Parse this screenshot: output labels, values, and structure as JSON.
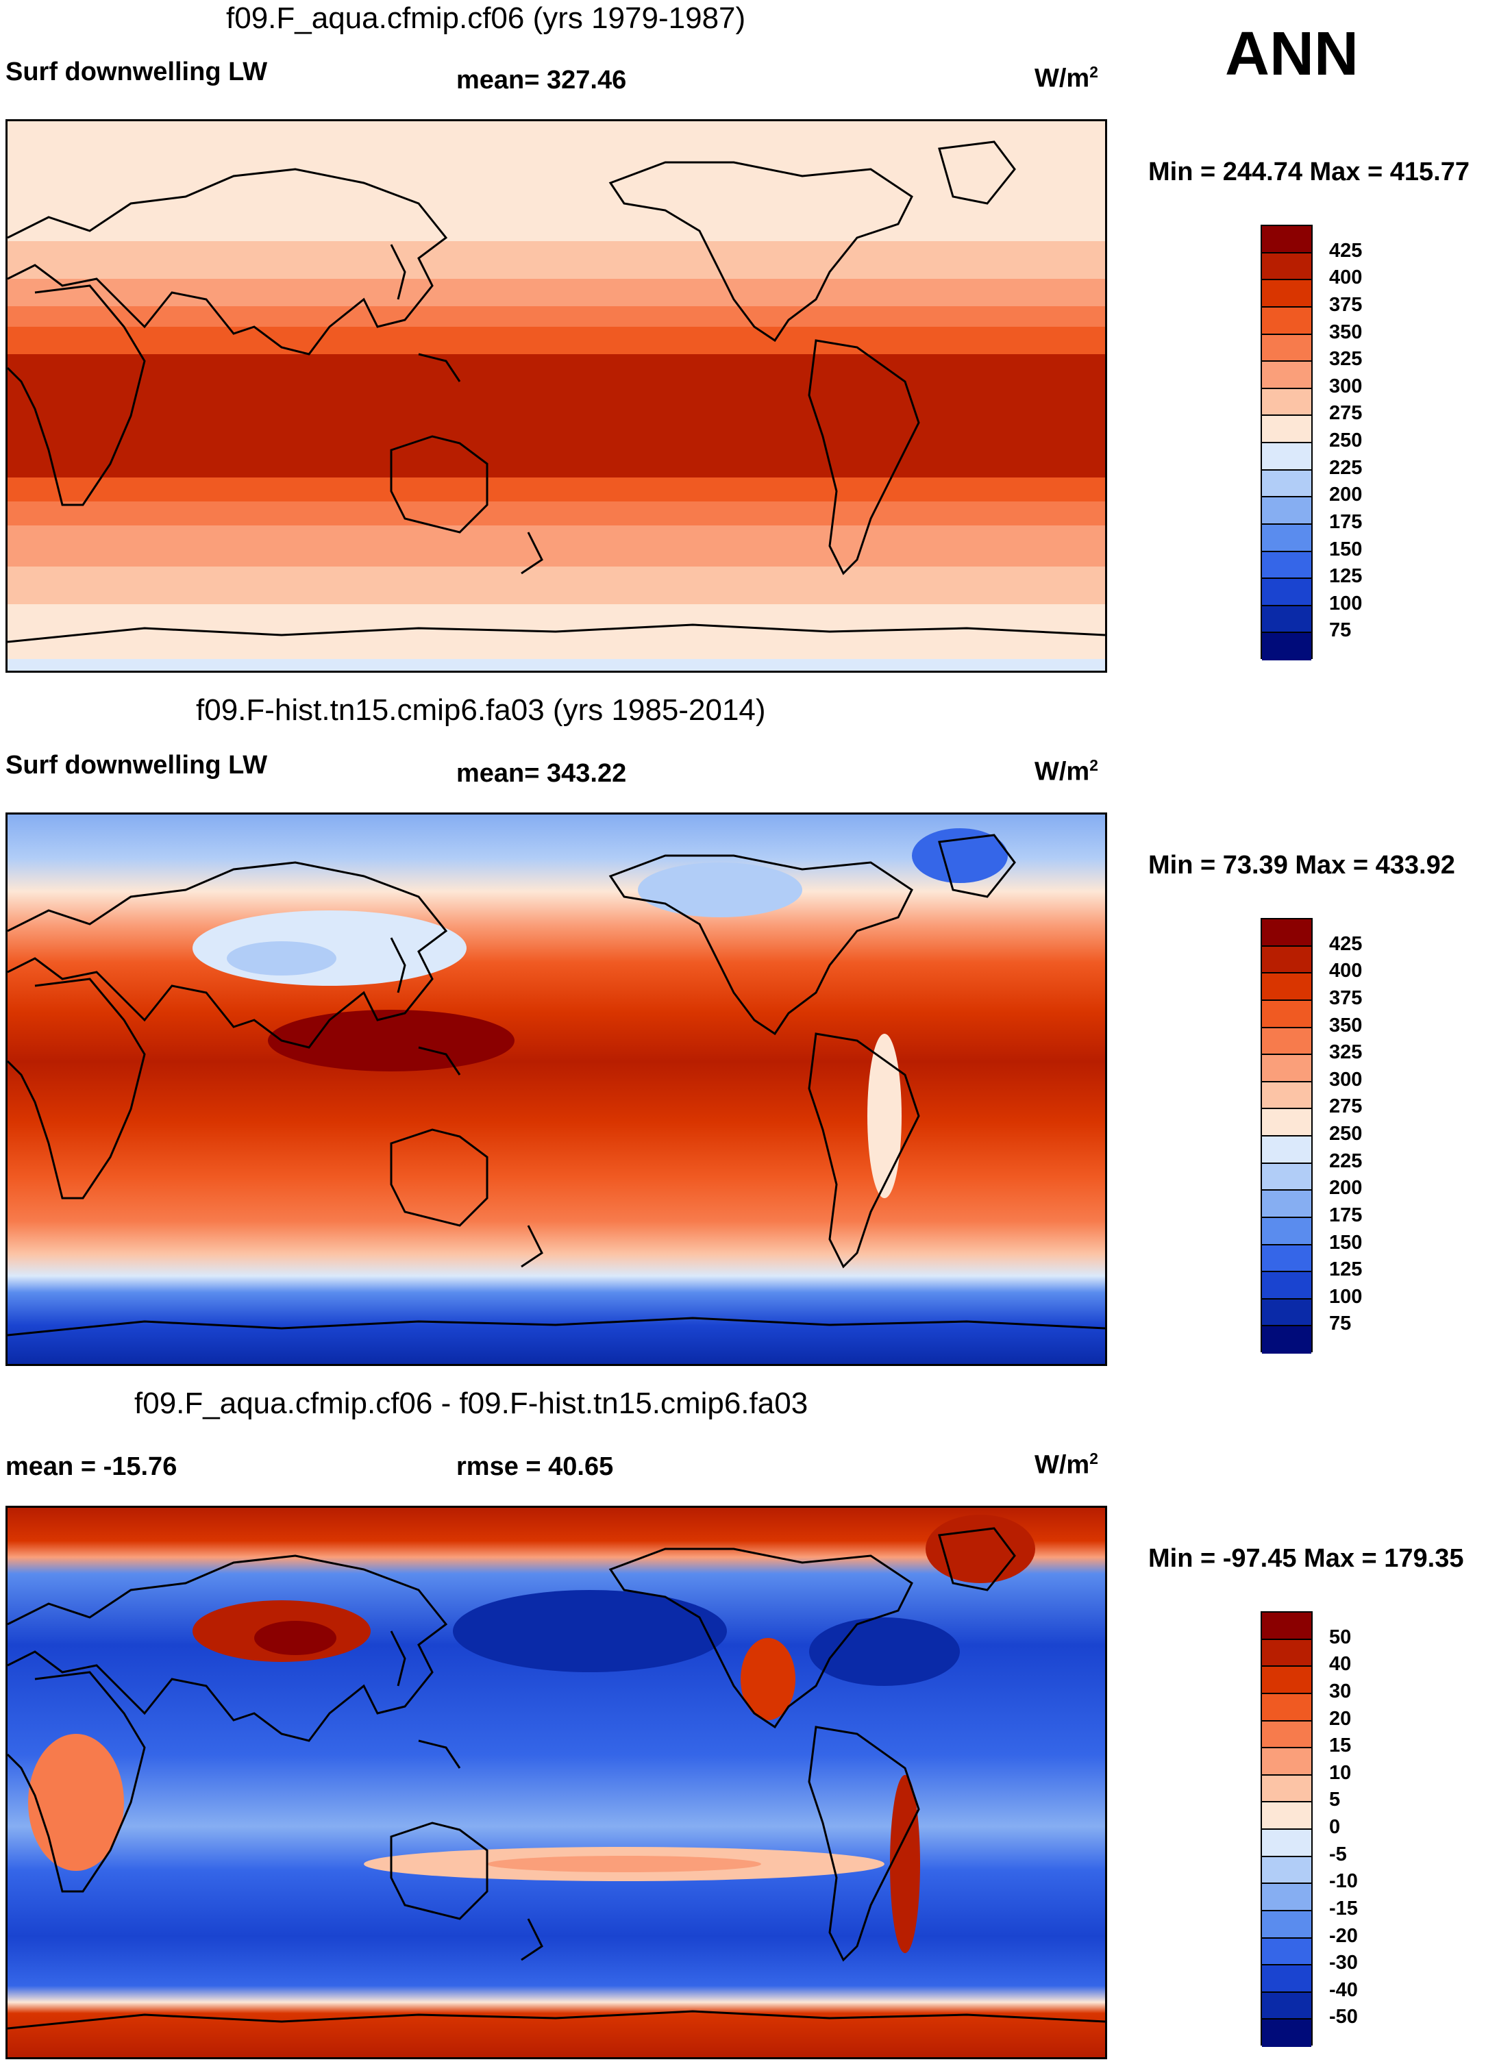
{
  "season": "ANN",
  "panels": [
    {
      "title": "f09.F_aqua.cfmip.cf06 (yrs 1979-1987)",
      "left_label": "Surf downwelling LW",
      "center_label": "mean= 327.46",
      "units": "W/m",
      "units_sup": "2",
      "minmax": "Min = 244.74 Max = 415.77",
      "colorbar": {
        "labels": [
          "425",
          "400",
          "375",
          "350",
          "325",
          "300",
          "275",
          "250",
          "225",
          "200",
          "175",
          "150",
          "125",
          "100",
          "75"
        ],
        "colors": [
          "#8b0000",
          "#b81e00",
          "#d93500",
          "#f05a22",
          "#f77b4c",
          "#fa9f7a",
          "#fcc4a6",
          "#fde7d6",
          "#dbe9fb",
          "#b1cdf7",
          "#86aef2",
          "#5a8cee",
          "#3566e8",
          "#1a44d0",
          "#0a2aa8",
          "#000b7a"
        ]
      }
    },
    {
      "title": "f09.F-hist.tn15.cmip6.fa03 (yrs 1985-2014)",
      "left_label": "Surf downwelling LW",
      "center_label": "mean= 343.22",
      "units": "W/m",
      "units_sup": "2",
      "minmax": "Min =  73.39 Max = 433.92",
      "colorbar": {
        "labels": [
          "425",
          "400",
          "375",
          "350",
          "325",
          "300",
          "275",
          "250",
          "225",
          "200",
          "175",
          "150",
          "125",
          "100",
          "75"
        ],
        "colors": [
          "#8b0000",
          "#b81e00",
          "#d93500",
          "#f05a22",
          "#f77b4c",
          "#fa9f7a",
          "#fcc4a6",
          "#fde7d6",
          "#dbe9fb",
          "#b1cdf7",
          "#86aef2",
          "#5a8cee",
          "#3566e8",
          "#1a44d0",
          "#0a2aa8",
          "#000b7a"
        ]
      }
    },
    {
      "title": "f09.F_aqua.cfmip.cf06 - f09.F-hist.tn15.cmip6.fa03",
      "left_label": "mean = -15.76",
      "center_label": "rmse =  40.65",
      "units": "W/m",
      "units_sup": "2",
      "minmax": "Min = -97.45 Max = 179.35",
      "colorbar": {
        "labels": [
          "50",
          "40",
          "30",
          "20",
          "15",
          "10",
          "5",
          "0",
          "-5",
          "-10",
          "-15",
          "-20",
          "-30",
          "-40",
          "-50"
        ],
        "colors": [
          "#8b0000",
          "#b81e00",
          "#d93500",
          "#f05a22",
          "#f77b4c",
          "#fa9f7a",
          "#fcc4a6",
          "#fde7d6",
          "#dbe9fb",
          "#b1cdf7",
          "#86aef2",
          "#5a8cee",
          "#3566e8",
          "#1a44d0",
          "#0a2aa8",
          "#000b7a"
        ]
      }
    }
  ]
}
